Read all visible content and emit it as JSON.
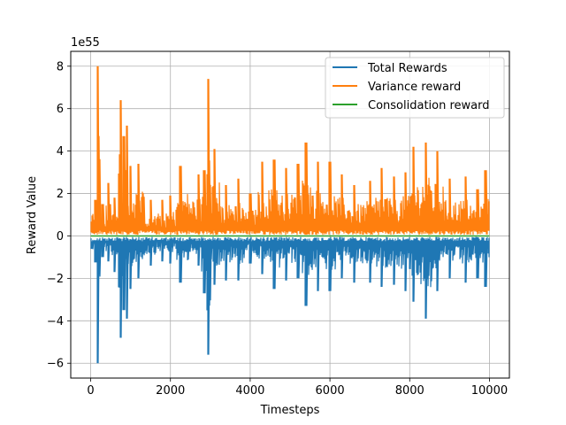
{
  "chart_data": {
    "type": "line",
    "xlabel": "Timesteps",
    "ylabel": "Reward Value",
    "y_scale_label": "1e55",
    "xlim": [
      -500,
      10500
    ],
    "ylim": [
      -6.7,
      8.7
    ],
    "x_ticks": [
      0,
      2000,
      4000,
      6000,
      8000,
      10000
    ],
    "x_tick_labels": [
      "0",
      "2000",
      "4000",
      "6000",
      "8000",
      "10000"
    ],
    "y_ticks": [
      -6,
      -4,
      -2,
      0,
      2,
      4,
      6,
      8
    ],
    "y_tick_labels": [
      "−6",
      "−4",
      "−2",
      "0",
      "2",
      "4",
      "6",
      "8"
    ],
    "grid": true,
    "legend_position": "top-right",
    "x_range": [
      0,
      10000
    ],
    "series": [
      {
        "name": "Total Rewards",
        "color": "#1f77b4",
        "peaks": [
          {
            "x": 120,
            "y": -1.25
          },
          {
            "x": 180,
            "y": -6.0
          },
          {
            "x": 300,
            "y": -1.0
          },
          {
            "x": 450,
            "y": -1.2
          },
          {
            "x": 600,
            "y": -1.7
          },
          {
            "x": 760,
            "y": -4.8
          },
          {
            "x": 830,
            "y": -3.5
          },
          {
            "x": 900,
            "y": -3.9
          },
          {
            "x": 1000,
            "y": -2.5
          },
          {
            "x": 1200,
            "y": -2.0
          },
          {
            "x": 1500,
            "y": -1.4
          },
          {
            "x": 1800,
            "y": -1.2
          },
          {
            "x": 2000,
            "y": -1.3
          },
          {
            "x": 2250,
            "y": -2.2
          },
          {
            "x": 2700,
            "y": -1.4
          },
          {
            "x": 2850,
            "y": -2.7
          },
          {
            "x": 2950,
            "y": -5.6
          },
          {
            "x": 3100,
            "y": -2.3
          },
          {
            "x": 3400,
            "y": -2.1
          },
          {
            "x": 3700,
            "y": -2.1
          },
          {
            "x": 4000,
            "y": -1.3
          },
          {
            "x": 4300,
            "y": -1.8
          },
          {
            "x": 4600,
            "y": -2.5
          },
          {
            "x": 4900,
            "y": -2.1
          },
          {
            "x": 5200,
            "y": -2.0
          },
          {
            "x": 5400,
            "y": -3.3
          },
          {
            "x": 5700,
            "y": -2.6
          },
          {
            "x": 6000,
            "y": -2.6
          },
          {
            "x": 6300,
            "y": -2.0
          },
          {
            "x": 6600,
            "y": -2.2
          },
          {
            "x": 7000,
            "y": -2.2
          },
          {
            "x": 7300,
            "y": -2.4
          },
          {
            "x": 7600,
            "y": -2.3
          },
          {
            "x": 7900,
            "y": -2.6
          },
          {
            "x": 8100,
            "y": -3.1
          },
          {
            "x": 8400,
            "y": -3.9
          },
          {
            "x": 8700,
            "y": -2.6
          },
          {
            "x": 9000,
            "y": -2.0
          },
          {
            "x": 9400,
            "y": -2.2
          },
          {
            "x": 9700,
            "y": -2.0
          },
          {
            "x": 9900,
            "y": -2.4
          }
        ]
      },
      {
        "name": "Variance reward",
        "color": "#ff7f0e",
        "peaks": [
          {
            "x": 120,
            "y": 1.7
          },
          {
            "x": 180,
            "y": 8.0
          },
          {
            "x": 300,
            "y": 1.5
          },
          {
            "x": 450,
            "y": 2.5
          },
          {
            "x": 600,
            "y": 1.8
          },
          {
            "x": 760,
            "y": 6.4
          },
          {
            "x": 830,
            "y": 4.7
          },
          {
            "x": 900,
            "y": 5.2
          },
          {
            "x": 1000,
            "y": 3.3
          },
          {
            "x": 1200,
            "y": 3.4
          },
          {
            "x": 1500,
            "y": 1.7
          },
          {
            "x": 1800,
            "y": 1.7
          },
          {
            "x": 2000,
            "y": 1.9
          },
          {
            "x": 2250,
            "y": 3.3
          },
          {
            "x": 2700,
            "y": 2.9
          },
          {
            "x": 2850,
            "y": 3.1
          },
          {
            "x": 2950,
            "y": 7.4
          },
          {
            "x": 3100,
            "y": 4.1
          },
          {
            "x": 3400,
            "y": 2.4
          },
          {
            "x": 3700,
            "y": 2.7
          },
          {
            "x": 4000,
            "y": 2.0
          },
          {
            "x": 4300,
            "y": 3.5
          },
          {
            "x": 4600,
            "y": 3.6
          },
          {
            "x": 4900,
            "y": 3.2
          },
          {
            "x": 5200,
            "y": 3.4
          },
          {
            "x": 5400,
            "y": 4.4
          },
          {
            "x": 5700,
            "y": 3.5
          },
          {
            "x": 6000,
            "y": 3.5
          },
          {
            "x": 6300,
            "y": 2.9
          },
          {
            "x": 6600,
            "y": 2.4
          },
          {
            "x": 7000,
            "y": 2.6
          },
          {
            "x": 7300,
            "y": 3.2
          },
          {
            "x": 7600,
            "y": 2.8
          },
          {
            "x": 7900,
            "y": 3.0
          },
          {
            "x": 8100,
            "y": 4.2
          },
          {
            "x": 8400,
            "y": 4.4
          },
          {
            "x": 8700,
            "y": 4.0
          },
          {
            "x": 9000,
            "y": 2.7
          },
          {
            "x": 9400,
            "y": 2.8
          },
          {
            "x": 9700,
            "y": 2.2
          },
          {
            "x": 9900,
            "y": 3.1
          }
        ]
      },
      {
        "name": "Consolidation reward",
        "color": "#2ca02c",
        "values_constant": 0.0
      }
    ]
  }
}
